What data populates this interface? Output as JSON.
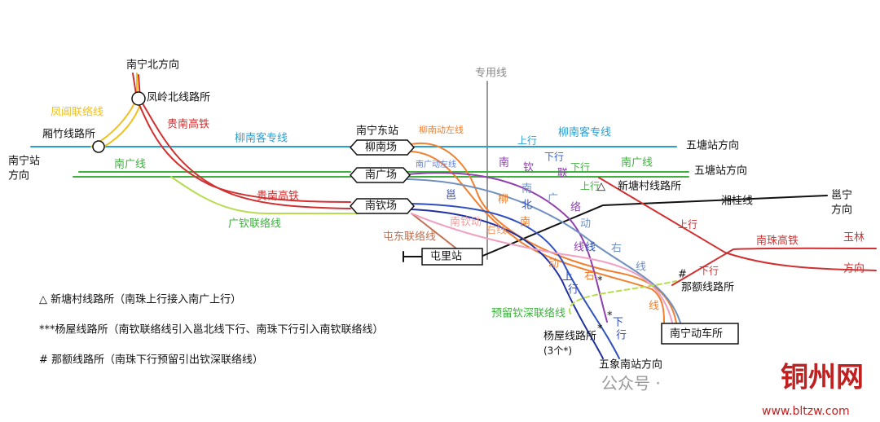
{
  "labels": [
    "南宁北方向",
    "凤岭北线路所",
    "凤阊联络线",
    "贵南高铁",
    "厢竹线路所",
    "南宁站",
    "方向",
    "柳南客专线",
    "南宁东站",
    "柳南场",
    "柳南动左线",
    "专用线",
    "上行",
    "柳南客专线",
    "五塘站方向",
    "下行",
    "南广线",
    "南广线",
    "南广动左线",
    "南广场",
    "五塘站方向",
    "下行",
    "上行",
    "△",
    "新塘村线路所",
    "贵南高铁",
    "南钦场",
    "湘桂线",
    "邕宁",
    "方向",
    "广钦联络线",
    "屯东联络线",
    "屯里站",
    "上行",
    "南珠高铁",
    "玉林",
    "方向",
    "#",
    "下行",
    "那额线路所",
    "南宁动车所",
    "预留钦深联络线",
    "杨屋线路所",
    "(3个*)",
    "五象南站方向",
    "*",
    "*",
    "*",
    "南钦动",
    "右线"
  ],
  "vertical_labels": [
    {
      "chars": [
        "南",
        "钦",
        "联",
        "络",
        "线"
      ]
    },
    {
      "chars": [
        "南",
        "广",
        "动",
        "右",
        "线"
      ]
    },
    {
      "chars": [
        "邕",
        "北",
        "线",
        "上",
        "行"
      ]
    },
    {
      "chars": [
        "柳",
        "南",
        "动",
        "右",
        "线"
      ]
    },
    {
      "chars": [
        "下",
        "行"
      ]
    }
  ],
  "notes": [
    "△  新塘村线路所（南珠上行接入南广上行）",
    "***杨屋线路所（南钦联络线引入邕北线下行、南珠下行引入南钦联络线）",
    "#   那额线路所（南珠下行预留引出钦深联络线）"
  ],
  "watermark": [
    "公众号 · ",
    "铜州网",
    "www.bltzw.com"
  ]
}
